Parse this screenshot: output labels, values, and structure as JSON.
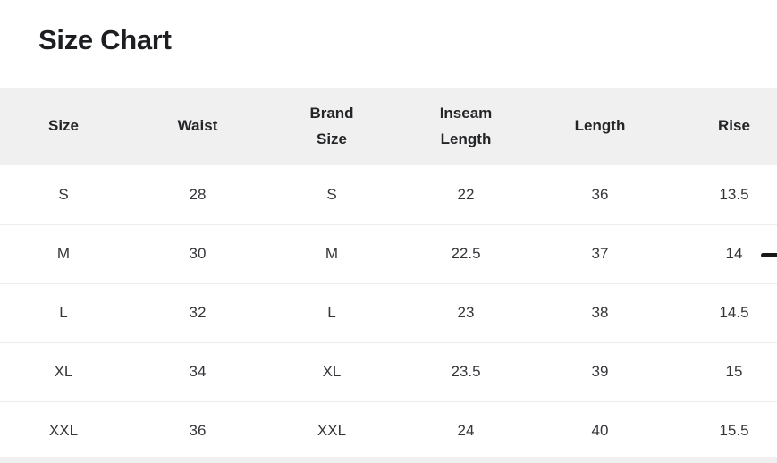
{
  "title": "Size Chart",
  "table": {
    "columns": [
      "Size",
      "Waist",
      "Brand Size",
      "Inseam Length",
      "Length",
      "Rise"
    ],
    "rows": [
      [
        "S",
        "28",
        "S",
        "22",
        "36",
        "13.5"
      ],
      [
        "M",
        "30",
        "M",
        "22.5",
        "37",
        "14"
      ],
      [
        "L",
        "32",
        "L",
        "23",
        "38",
        "14.5"
      ],
      [
        "XL",
        "34",
        "XL",
        "23.5",
        "39",
        "15"
      ],
      [
        "XXL",
        "36",
        "XXL",
        "24",
        "40",
        "15.5"
      ]
    ]
  },
  "icons": {
    "scroll_indicator": "horizontal-dash"
  },
  "colors": {
    "header_background": "#f0f0f1",
    "row_divider": "#ececed",
    "title_text": "#1c1e21",
    "header_text": "#232527",
    "cell_text": "#333538",
    "indicator": "#17181a",
    "page_background": "#ffffff"
  }
}
